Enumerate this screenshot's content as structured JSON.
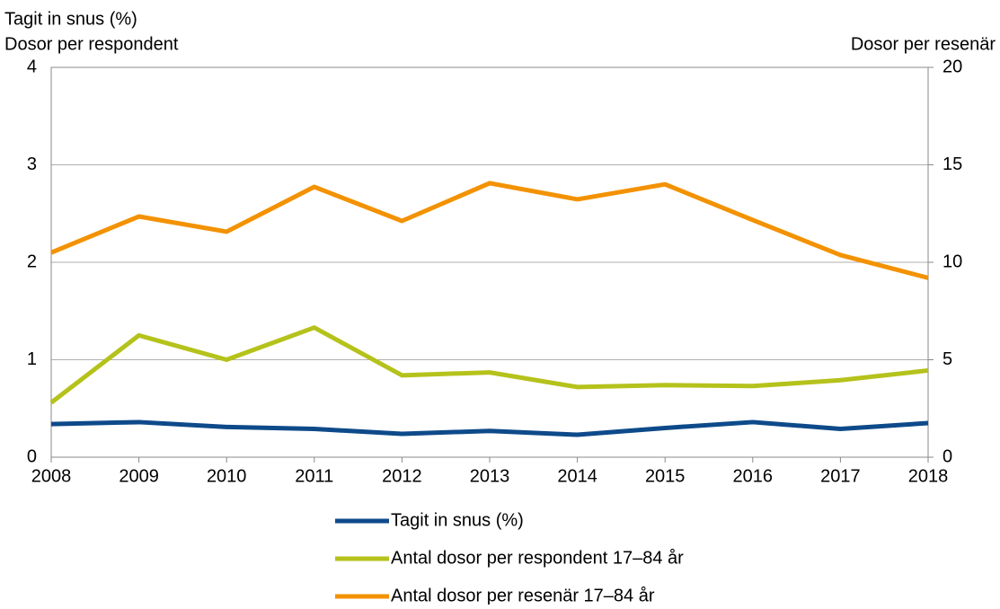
{
  "chart_data": {
    "type": "line",
    "ylabel": [
      "Tagit in snus (%)",
      "Dosor per respondent"
    ],
    "y2label": "Dosor per resenär",
    "x": [
      2008,
      2009,
      2010,
      2011,
      2012,
      2013,
      2014,
      2015,
      2016,
      2017,
      2018
    ],
    "xlim": [
      2008,
      2018
    ],
    "xticks": [
      2008,
      2009,
      2010,
      2011,
      2012,
      2013,
      2014,
      2015,
      2016,
      2017,
      2018
    ],
    "ylim": [
      0,
      4
    ],
    "yticks": [
      0,
      1,
      2,
      3,
      4
    ],
    "y2lim": [
      0,
      20
    ],
    "y2ticks": [
      0,
      5,
      10,
      15,
      20
    ],
    "grid": true,
    "legend": "bottom",
    "series": [
      {
        "name": "Tagit in snus (%)",
        "color": "#0e4a8a",
        "values": [
          0.34,
          0.36,
          0.31,
          0.29,
          0.24,
          0.27,
          0.23,
          0.3,
          0.36,
          0.29,
          0.35
        ]
      },
      {
        "name": "Antal dosor per respondent 17–84 år",
        "color": "#b5c21b",
        "values": [
          0.56,
          1.25,
          1.0,
          1.33,
          0.84,
          0.87,
          0.72,
          0.74,
          0.73,
          0.79,
          0.89
        ]
      },
      {
        "name": "Antal dosor per resenär 17–84 år",
        "color": "#f39200",
        "axis": "y2",
        "values": [
          10.5,
          12.35,
          11.57,
          13.87,
          12.12,
          14.06,
          13.23,
          14.0,
          12.17,
          10.37,
          9.2
        ]
      }
    ]
  }
}
